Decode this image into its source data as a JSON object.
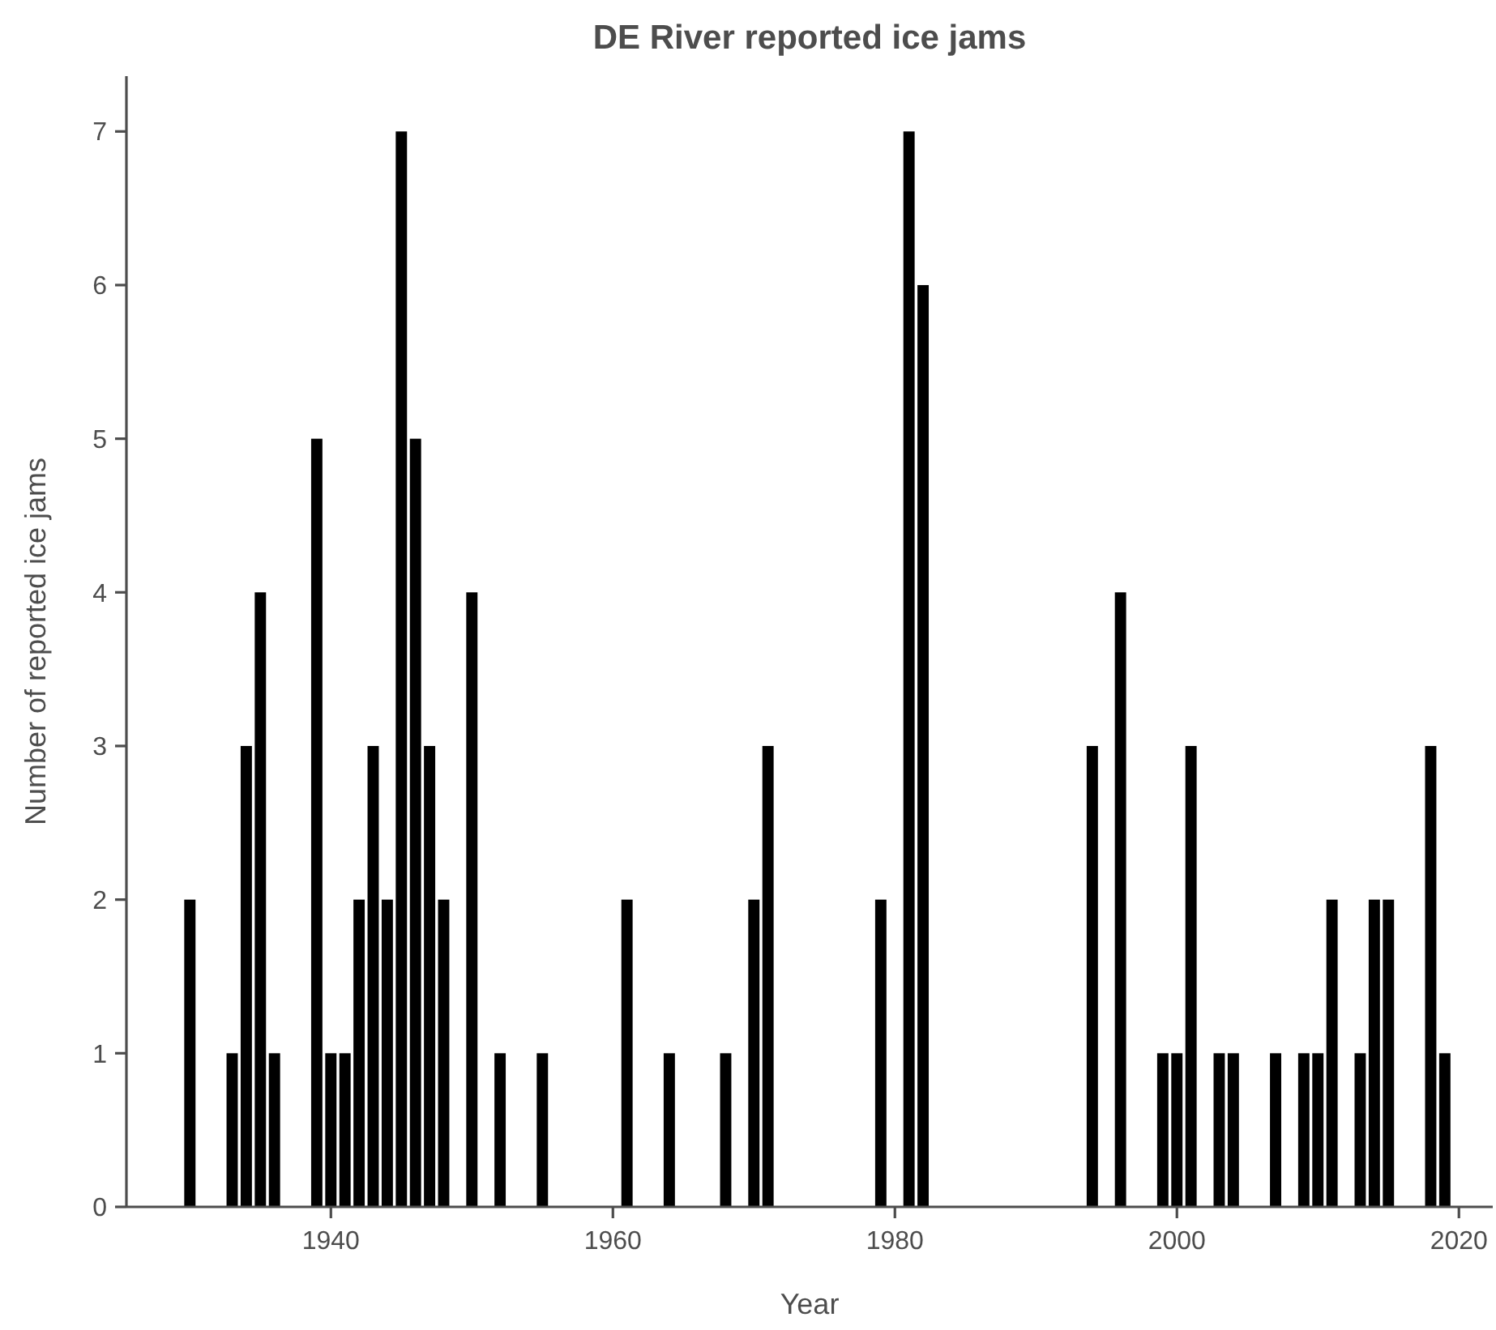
{
  "chart_data": {
    "type": "bar",
    "title": "DE River reported ice jams",
    "xlabel": "Year",
    "ylabel": "Number of reported ice jams",
    "x": [
      1930,
      1933,
      1934,
      1935,
      1936,
      1939,
      1940,
      1941,
      1942,
      1943,
      1944,
      1945,
      1946,
      1947,
      1948,
      1950,
      1952,
      1955,
      1961,
      1964,
      1968,
      1970,
      1971,
      1979,
      1981,
      1982,
      1994,
      1996,
      1999,
      2000,
      2001,
      2003,
      2004,
      2007,
      2009,
      2010,
      2011,
      2013,
      2014,
      2015,
      2018,
      2019
    ],
    "values": [
      2,
      1,
      3,
      4,
      1,
      5,
      1,
      1,
      2,
      3,
      2,
      7,
      5,
      3,
      2,
      4,
      1,
      1,
      2,
      1,
      1,
      2,
      3,
      2,
      7,
      6,
      3,
      4,
      1,
      1,
      3,
      1,
      1,
      1,
      1,
      1,
      2,
      1,
      2,
      2,
      3,
      1
    ],
    "color": "#000000",
    "xlim": [
      1925.5,
      2022.4
    ],
    "xticks": [
      1940,
      1960,
      1980,
      2000,
      2020
    ],
    "ylim": [
      0,
      7.36
    ],
    "yticks": [
      0,
      1,
      2,
      3,
      4,
      5,
      6,
      7
    ],
    "grid": false
  }
}
